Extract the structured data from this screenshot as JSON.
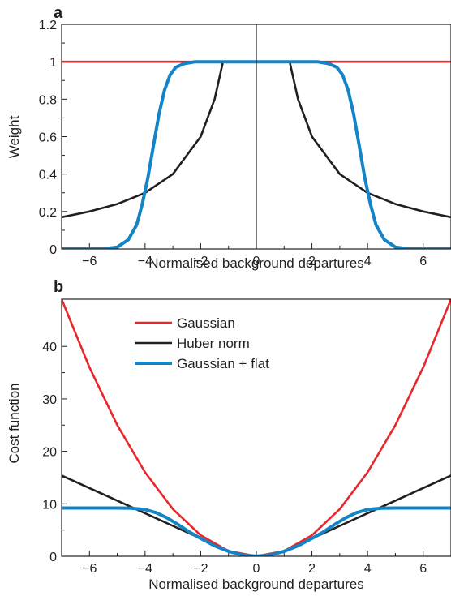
{
  "colors": {
    "gaussian": "#e8262b",
    "huber": "#231f20",
    "flat": "#1384c5",
    "axis": "#231f20"
  },
  "chart_data": [
    {
      "type": "line",
      "panel_label": "a",
      "xlabel": "Normalised background departures",
      "ylabel": "Weight",
      "xlim": [
        -7,
        7
      ],
      "ylim": [
        0,
        1.2
      ],
      "xticks": [
        -6,
        -4,
        -2,
        0,
        2,
        4,
        6
      ],
      "xtick_labels": [
        "−6",
        "−4",
        "−2",
        "0",
        "2",
        "4",
        "6"
      ],
      "yticks": [
        0,
        0.2,
        0.4,
        0.6,
        0.8,
        1,
        1.2
      ],
      "ytick_labels": [
        "0",
        "0.2",
        "0.4",
        "0.6",
        "0.8",
        "1",
        "1.2"
      ],
      "grid": false,
      "series": [
        {
          "name": "Gaussian",
          "color": "#e8262b",
          "x": [
            -7,
            -5,
            -3,
            -1,
            0,
            1,
            3,
            5,
            7
          ],
          "y": [
            1,
            1,
            1,
            1,
            1,
            1,
            1,
            1,
            1
          ]
        },
        {
          "name": "Huber norm",
          "color": "#231f20",
          "x": [
            -7,
            -6,
            -5,
            -4,
            -3,
            -2,
            -1.5,
            -1.2,
            -1,
            0,
            1,
            1.2,
            1.5,
            2,
            3,
            4,
            5,
            6,
            7
          ],
          "y": [
            0.17,
            0.2,
            0.24,
            0.3,
            0.4,
            0.6,
            0.8,
            1,
            1,
            1,
            1,
            1,
            0.8,
            0.6,
            0.4,
            0.3,
            0.24,
            0.2,
            0.17
          ]
        },
        {
          "name": "Gaussian + flat",
          "color": "#1384c5",
          "x": [
            -7,
            -5.5,
            -5,
            -4.6,
            -4.3,
            -4.1,
            -3.9,
            -3.7,
            -3.5,
            -3.3,
            -3.1,
            -2.9,
            -2.6,
            -2.2,
            -1.5,
            0,
            1.5,
            2.2,
            2.6,
            2.9,
            3.1,
            3.3,
            3.5,
            3.7,
            3.9,
            4.1,
            4.3,
            4.6,
            5,
            5.5,
            7
          ],
          "y": [
            0,
            0,
            0.01,
            0.05,
            0.13,
            0.24,
            0.38,
            0.55,
            0.72,
            0.85,
            0.93,
            0.97,
            0.99,
            1,
            1,
            1,
            1,
            1,
            0.99,
            0.97,
            0.93,
            0.85,
            0.72,
            0.55,
            0.38,
            0.24,
            0.13,
            0.05,
            0.01,
            0,
            0
          ]
        }
      ]
    },
    {
      "type": "line",
      "panel_label": "b",
      "xlabel": "Normalised background departures",
      "ylabel": "Cost function",
      "xlim": [
        -7,
        7
      ],
      "ylim": [
        0,
        49
      ],
      "xticks": [
        -6,
        -4,
        -2,
        0,
        2,
        4,
        6
      ],
      "xtick_labels": [
        "−6",
        "−4",
        "−2",
        "0",
        "2",
        "4",
        "6"
      ],
      "yticks": [
        0,
        10,
        20,
        30,
        40
      ],
      "ytick_labels": [
        "0",
        "10",
        "20",
        "30",
        "40"
      ],
      "grid": false,
      "legend": {
        "position": "top-center",
        "entries": [
          "Gaussian",
          "Huber norm",
          "Gaussian + flat"
        ]
      },
      "series": [
        {
          "name": "Gaussian",
          "color": "#e8262b",
          "x": [
            -7,
            -6,
            -5,
            -4,
            -3,
            -2,
            -1,
            0,
            1,
            2,
            3,
            4,
            5,
            6,
            7
          ],
          "y": [
            49,
            36,
            25,
            16,
            9,
            4,
            1,
            0,
            1,
            4,
            9,
            16,
            25,
            36,
            49
          ]
        },
        {
          "name": "Huber norm",
          "color": "#231f20",
          "x": [
            -7,
            -5,
            -3,
            -1.5,
            -1,
            -0.5,
            0,
            0.5,
            1,
            1.5,
            3,
            5,
            7
          ],
          "y": [
            15.4,
            10.6,
            5.8,
            2.2,
            1,
            0.25,
            0,
            0.25,
            1,
            2.2,
            5.8,
            10.6,
            15.4
          ]
        },
        {
          "name": "Gaussian + flat",
          "color": "#1384c5",
          "x": [
            -7,
            -5,
            -4.5,
            -4,
            -3.6,
            -3.2,
            -2.8,
            -2.4,
            -2,
            -1.5,
            -1,
            -0.5,
            0,
            0.5,
            1,
            1.5,
            2,
            2.4,
            2.8,
            3.2,
            3.6,
            4,
            4.5,
            5,
            7
          ],
          "y": [
            9.2,
            9.2,
            9.15,
            8.9,
            8.3,
            7.3,
            6.0,
            4.6,
            3.4,
            2.0,
            0.95,
            0.25,
            0,
            0.25,
            0.95,
            2.0,
            3.4,
            4.6,
            6.0,
            7.3,
            8.3,
            8.9,
            9.15,
            9.2,
            9.2
          ]
        }
      ]
    }
  ]
}
